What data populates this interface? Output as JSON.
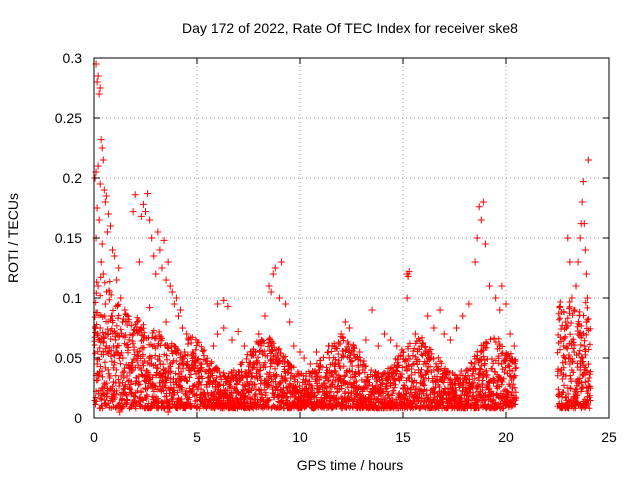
{
  "chart_data": {
    "type": "scatter",
    "title": "Day 172 of 2022, Rate Of TEC Index for receiver ske8",
    "xlabel": "GPS time / hours",
    "ylabel": "ROTI / TECUs",
    "xlim": [
      0,
      25
    ],
    "ylim": [
      0,
      0.3
    ],
    "x_ticks": [
      {
        "value": 0,
        "label": "0"
      },
      {
        "value": 5,
        "label": "5"
      },
      {
        "value": 10,
        "label": "10"
      },
      {
        "value": 15,
        "label": "15"
      },
      {
        "value": 20,
        "label": "20"
      },
      {
        "value": 25,
        "label": "25"
      }
    ],
    "y_ticks": [
      {
        "value": 0,
        "label": "0"
      },
      {
        "value": 0.05,
        "label": "0.05"
      },
      {
        "value": 0.1,
        "label": "0.1"
      },
      {
        "value": 0.15,
        "label": "0.15"
      },
      {
        "value": 0.2,
        "label": "0.2"
      },
      {
        "value": 0.25,
        "label": "0.25"
      },
      {
        "value": 0.3,
        "label": "0.3"
      }
    ],
    "grid": true,
    "legend": "none",
    "marker": "plus",
    "color": "#ff0000",
    "series": [
      {
        "points": [
          [
            0.1,
            0.295
          ],
          [
            0.2,
            0.285
          ],
          [
            0.15,
            0.28
          ],
          [
            0.3,
            0.275
          ],
          [
            0.25,
            0.27
          ],
          [
            0.35,
            0.232
          ],
          [
            0.4,
            0.225
          ],
          [
            0.45,
            0.215
          ],
          [
            0.2,
            0.21
          ],
          [
            0.1,
            0.205
          ],
          [
            0.05,
            0.2
          ],
          [
            0.3,
            0.195
          ],
          [
            0.5,
            0.19
          ],
          [
            0.6,
            0.185
          ],
          [
            0.55,
            0.18
          ],
          [
            0.15,
            0.175
          ],
          [
            0.7,
            0.17
          ],
          [
            0.25,
            0.165
          ],
          [
            0.8,
            0.16
          ],
          [
            0.65,
            0.155
          ],
          [
            0.1,
            0.15
          ],
          [
            0.4,
            0.145
          ],
          [
            0.9,
            0.14
          ],
          [
            1.0,
            0.135
          ],
          [
            0.35,
            0.13
          ],
          [
            1.2,
            0.125
          ],
          [
            0.45,
            0.12
          ],
          [
            1.1,
            0.115
          ],
          [
            0.2,
            0.11
          ],
          [
            0.75,
            0.105
          ],
          [
            1.3,
            0.1
          ],
          [
            0.55,
            0.095
          ],
          [
            1.5,
            0.09
          ],
          [
            0.85,
            0.085
          ],
          [
            1.7,
            0.08
          ],
          [
            0.3,
            0.075
          ],
          [
            1.9,
            0.07
          ],
          [
            1.05,
            0.065
          ],
          [
            0.6,
            0.06
          ],
          [
            2.1,
            0.055
          ],
          [
            1.4,
            0.05
          ],
          [
            0.15,
            0.045
          ],
          [
            2.3,
            0.04
          ],
          [
            1.6,
            0.035
          ],
          [
            0.95,
            0.03
          ],
          [
            2.5,
            0.025
          ],
          [
            1.8,
            0.02
          ],
          [
            0.5,
            0.015
          ],
          [
            2.0,
            0.01
          ],
          [
            1.25,
            0.005
          ],
          [
            2.0,
            0.186
          ],
          [
            2.6,
            0.187
          ],
          [
            2.4,
            0.178
          ],
          [
            2.5,
            0.172
          ],
          [
            2.3,
            0.168
          ],
          [
            1.9,
            0.172
          ],
          [
            2.7,
            0.165
          ],
          [
            2.8,
            0.15
          ],
          [
            3.1,
            0.155
          ],
          [
            3.4,
            0.148
          ],
          [
            3.2,
            0.14
          ],
          [
            2.9,
            0.135
          ],
          [
            3.6,
            0.13
          ],
          [
            3.3,
            0.125
          ],
          [
            3.0,
            0.12
          ],
          [
            3.5,
            0.115
          ],
          [
            3.7,
            0.11
          ],
          [
            2.2,
            0.13
          ],
          [
            3.8,
            0.105
          ],
          [
            4.0,
            0.1
          ],
          [
            3.9,
            0.095
          ],
          [
            4.2,
            0.09
          ],
          [
            4.1,
            0.085
          ],
          [
            2.7,
            0.092
          ],
          [
            3.5,
            0.08
          ],
          [
            4.3,
            0.075
          ],
          [
            4.5,
            0.07
          ],
          [
            2.4,
            0.065
          ],
          [
            3.1,
            0.06
          ],
          [
            4.4,
            0.055
          ],
          [
            2.8,
            0.05
          ],
          [
            3.7,
            0.045
          ],
          [
            4.6,
            0.04
          ],
          [
            3.3,
            0.035
          ],
          [
            4.0,
            0.03
          ],
          [
            2.6,
            0.025
          ],
          [
            4.8,
            0.02
          ],
          [
            3.0,
            0.015
          ],
          [
            4.2,
            0.01
          ],
          [
            3.6,
            0.005
          ],
          [
            5.2,
            0.04
          ],
          [
            5.5,
            0.045
          ],
          [
            5.8,
            0.06
          ],
          [
            6.0,
            0.07
          ],
          [
            6.3,
            0.075
          ],
          [
            6.0,
            0.095
          ],
          [
            6.3,
            0.098
          ],
          [
            6.5,
            0.093
          ],
          [
            6.7,
            0.065
          ],
          [
            7.0,
            0.072
          ],
          [
            7.3,
            0.06
          ],
          [
            7.6,
            0.055
          ],
          [
            8.0,
            0.07
          ],
          [
            8.3,
            0.085
          ],
          [
            8.5,
            0.11
          ],
          [
            8.7,
            0.12
          ],
          [
            8.8,
            0.125
          ],
          [
            8.6,
            0.105
          ],
          [
            9.0,
            0.1
          ],
          [
            9.1,
            0.13
          ],
          [
            9.3,
            0.095
          ],
          [
            9.5,
            0.08
          ],
          [
            9.7,
            0.06
          ],
          [
            10.0,
            0.055
          ],
          [
            5.3,
            0.02
          ],
          [
            5.9,
            0.025
          ],
          [
            6.6,
            0.03
          ],
          [
            7.2,
            0.02
          ],
          [
            7.9,
            0.035
          ],
          [
            8.4,
            0.015
          ],
          [
            9.2,
            0.025
          ],
          [
            9.8,
            0.02
          ],
          [
            5.6,
            0.01
          ],
          [
            6.8,
            0.012
          ],
          [
            7.5,
            0.04
          ],
          [
            8.9,
            0.045
          ],
          [
            9.4,
            0.038
          ],
          [
            10.2,
            0.05
          ],
          [
            10.5,
            0.045
          ],
          [
            10.8,
            0.055
          ],
          [
            11.0,
            0.048
          ],
          [
            11.4,
            0.06
          ],
          [
            11.7,
            0.058
          ],
          [
            12.0,
            0.07
          ],
          [
            12.2,
            0.08
          ],
          [
            12.4,
            0.075
          ],
          [
            12.6,
            0.06
          ],
          [
            12.9,
            0.055
          ],
          [
            13.2,
            0.065
          ],
          [
            13.5,
            0.09
          ],
          [
            13.8,
            0.06
          ],
          [
            14.1,
            0.07
          ],
          [
            14.4,
            0.065
          ],
          [
            14.7,
            0.06
          ],
          [
            15.0,
            0.055
          ],
          [
            15.2,
            0.1
          ],
          [
            15.2,
            0.12
          ],
          [
            15.3,
            0.122
          ],
          [
            15.25,
            0.118
          ],
          [
            15.6,
            0.07
          ],
          [
            15.9,
            0.06
          ],
          [
            16.2,
            0.085
          ],
          [
            16.5,
            0.075
          ],
          [
            16.8,
            0.09
          ],
          [
            17.0,
            0.07
          ],
          [
            17.3,
            0.065
          ],
          [
            17.6,
            0.075
          ],
          [
            17.9,
            0.085
          ],
          [
            18.2,
            0.095
          ],
          [
            18.5,
            0.13
          ],
          [
            18.6,
            0.15
          ],
          [
            18.7,
            0.176
          ],
          [
            18.9,
            0.18
          ],
          [
            18.8,
            0.165
          ],
          [
            19.0,
            0.145
          ],
          [
            19.2,
            0.11
          ],
          [
            19.5,
            0.1
          ],
          [
            19.7,
            0.09
          ],
          [
            19.8,
            0.11
          ],
          [
            20.0,
            0.095
          ],
          [
            20.2,
            0.07
          ],
          [
            20.4,
            0.06
          ],
          [
            10.6,
            0.02
          ],
          [
            11.3,
            0.025
          ],
          [
            12.1,
            0.03
          ],
          [
            12.8,
            0.015
          ],
          [
            13.6,
            0.02
          ],
          [
            14.3,
            0.035
          ],
          [
            15.1,
            0.025
          ],
          [
            15.8,
            0.02
          ],
          [
            16.6,
            0.03
          ],
          [
            17.4,
            0.025
          ],
          [
            18.1,
            0.04
          ],
          [
            18.9,
            0.035
          ],
          [
            19.6,
            0.03
          ],
          [
            20.3,
            0.015
          ],
          [
            11.0,
            0.01
          ],
          [
            13.0,
            0.012
          ],
          [
            16.0,
            0.01
          ],
          [
            19.0,
            0.01
          ],
          [
            22.6,
            0.02
          ],
          [
            22.7,
            0.04
          ],
          [
            22.8,
            0.06
          ],
          [
            22.9,
            0.08
          ],
          [
            23.0,
            0.15
          ],
          [
            23.1,
            0.13
          ],
          [
            23.2,
            0.1
          ],
          [
            23.3,
            0.09
          ],
          [
            23.4,
            0.11
          ],
          [
            23.5,
            0.13
          ],
          [
            23.6,
            0.15
          ],
          [
            23.65,
            0.162
          ],
          [
            23.7,
            0.18
          ],
          [
            23.75,
            0.197
          ],
          [
            23.8,
            0.162
          ],
          [
            23.85,
            0.14
          ],
          [
            23.9,
            0.12
          ],
          [
            23.95,
            0.1
          ],
          [
            24.0,
            0.215
          ],
          [
            23.9,
            0.08
          ],
          [
            23.8,
            0.06
          ],
          [
            23.7,
            0.05
          ],
          [
            23.6,
            0.04
          ],
          [
            23.5,
            0.03
          ],
          [
            23.4,
            0.02
          ],
          [
            23.3,
            0.015
          ],
          [
            23.2,
            0.01
          ],
          [
            23.0,
            0.025
          ],
          [
            22.9,
            0.035
          ],
          [
            23.1,
            0.045
          ],
          [
            23.5,
            0.07
          ],
          [
            23.85,
            0.03
          ],
          [
            24.0,
            0.025
          ],
          [
            22.7,
            0.012
          ],
          [
            23.6,
            0.01
          ]
        ]
      }
    ]
  }
}
